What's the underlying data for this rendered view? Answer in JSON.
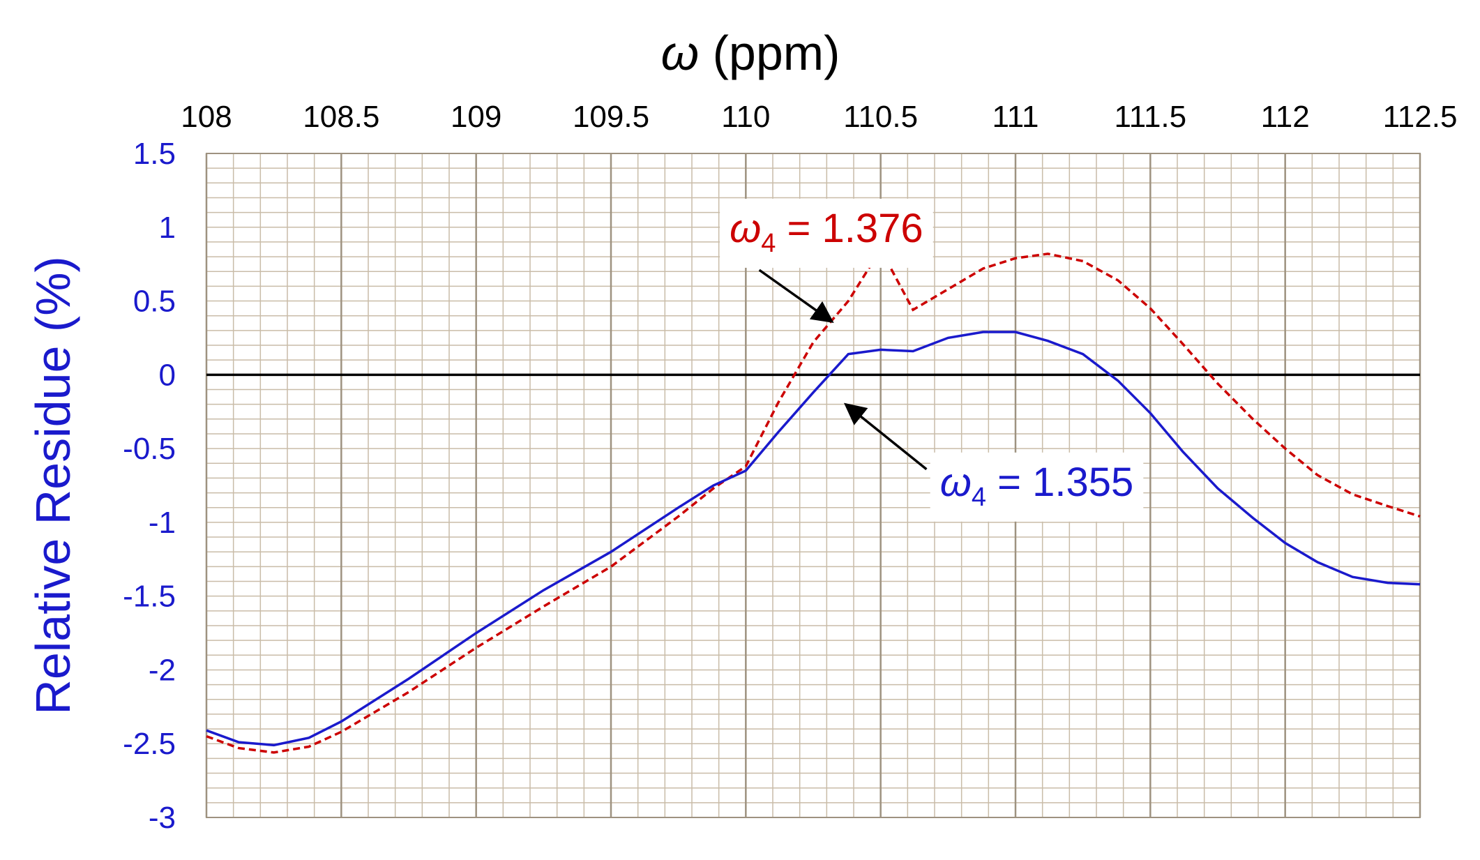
{
  "chart_data": {
    "type": "line",
    "title": "",
    "xlabel": {
      "symbol": "ω",
      "unit": " (ppm)"
    },
    "ylabel": "Relative Residue (%)",
    "xlim": [
      108,
      112.5
    ],
    "ylim": [
      -3,
      1.5
    ],
    "x_ticks": [
      "108",
      "108.5",
      "109",
      "109.5",
      "110",
      "110.5",
      "111",
      "111.5",
      "112",
      "112.5"
    ],
    "x_tick_values": [
      108,
      108.5,
      109,
      109.5,
      110,
      110.5,
      111,
      111.5,
      112,
      112.5
    ],
    "y_ticks": [
      "1.5",
      "1",
      "0.5",
      "0",
      "-0.5",
      "-1",
      "-1.5",
      "-2",
      "-2.5",
      "-3"
    ],
    "y_tick_values": [
      1.5,
      1,
      0.5,
      0,
      -0.5,
      -1,
      -1.5,
      -2,
      -2.5,
      -3
    ],
    "x_axis_position": "top",
    "grid": true,
    "minor_grid": {
      "x_step": 0.1,
      "y_step": 0.1
    },
    "reference_line_y": 0,
    "colors": {
      "grid_minor": "#c9bca8",
      "grid_major": "#9e9280",
      "y_axis_text": "#1a1acc",
      "x_axis_text": "#000000",
      "zero_line": "#000000",
      "arrow": "#000000"
    },
    "series": [
      {
        "color": "#cc0000",
        "style": "dashed",
        "points": [
          [
            108.0,
            -2.45
          ],
          [
            108.12,
            -2.53
          ],
          [
            108.25,
            -2.56
          ],
          [
            108.38,
            -2.52
          ],
          [
            108.5,
            -2.42
          ],
          [
            108.75,
            -2.15
          ],
          [
            109.0,
            -1.85
          ],
          [
            109.25,
            -1.57
          ],
          [
            109.5,
            -1.3
          ],
          [
            109.75,
            -0.96
          ],
          [
            109.88,
            -0.77
          ],
          [
            110.0,
            -0.62
          ],
          [
            110.12,
            -0.19
          ],
          [
            110.25,
            0.22
          ],
          [
            110.38,
            0.5
          ],
          [
            110.5,
            0.85
          ],
          [
            110.62,
            0.44
          ],
          [
            110.75,
            0.58
          ],
          [
            110.88,
            0.72
          ],
          [
            111.0,
            0.79
          ],
          [
            111.12,
            0.82
          ],
          [
            111.25,
            0.77
          ],
          [
            111.38,
            0.64
          ],
          [
            111.5,
            0.45
          ],
          [
            111.62,
            0.21
          ],
          [
            111.75,
            -0.06
          ],
          [
            111.88,
            -0.3
          ],
          [
            112.0,
            -0.5
          ],
          [
            112.12,
            -0.68
          ],
          [
            112.25,
            -0.81
          ],
          [
            112.38,
            -0.89
          ],
          [
            112.5,
            -0.96
          ]
        ]
      },
      {
        "color": "#1a1acc",
        "style": "solid",
        "points": [
          [
            108.0,
            -2.41
          ],
          [
            108.12,
            -2.49
          ],
          [
            108.25,
            -2.51
          ],
          [
            108.38,
            -2.46
          ],
          [
            108.5,
            -2.35
          ],
          [
            108.75,
            -2.06
          ],
          [
            109.0,
            -1.75
          ],
          [
            109.25,
            -1.46
          ],
          [
            109.5,
            -1.2
          ],
          [
            109.75,
            -0.9
          ],
          [
            109.88,
            -0.75
          ],
          [
            110.0,
            -0.65
          ],
          [
            110.12,
            -0.39
          ],
          [
            110.25,
            -0.12
          ],
          [
            110.38,
            0.14
          ],
          [
            110.5,
            0.17
          ],
          [
            110.62,
            0.16
          ],
          [
            110.75,
            0.25
          ],
          [
            110.88,
            0.29
          ],
          [
            111.0,
            0.29
          ],
          [
            111.12,
            0.23
          ],
          [
            111.25,
            0.14
          ],
          [
            111.38,
            -0.04
          ],
          [
            111.5,
            -0.26
          ],
          [
            111.62,
            -0.52
          ],
          [
            111.75,
            -0.77
          ],
          [
            111.88,
            -0.97
          ],
          [
            112.0,
            -1.14
          ],
          [
            112.12,
            -1.27
          ],
          [
            112.25,
            -1.37
          ],
          [
            112.38,
            -1.41
          ],
          [
            112.5,
            -1.42
          ]
        ]
      }
    ],
    "annotations": [
      {
        "symbol": "ω",
        "sub": "4",
        "rest": " = 1.376",
        "color": "#cc0000",
        "label_at": [
          109.94,
          0.9
        ],
        "arrow_from": [
          110.05,
          0.71
        ],
        "arrow_to": [
          110.32,
          0.36
        ]
      },
      {
        "symbol": "ω",
        "sub": "4",
        "rest": " = 1.355",
        "color": "#1a1acc",
        "label_at": [
          110.72,
          -0.82
        ],
        "arrow_from": [
          110.67,
          -0.64
        ],
        "arrow_to": [
          110.37,
          -0.2
        ]
      }
    ]
  }
}
